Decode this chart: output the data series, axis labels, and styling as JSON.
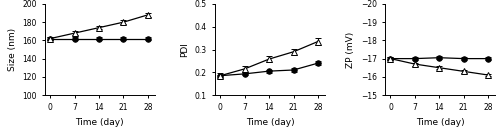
{
  "time": [
    0,
    7,
    14,
    21,
    28
  ],
  "size_4c": [
    162,
    162,
    162,
    162,
    162
  ],
  "size_25c": [
    162,
    168,
    174,
    180,
    188
  ],
  "size_err_4c": [
    2,
    2,
    2,
    2,
    2
  ],
  "size_err_25c": [
    2,
    2,
    2,
    2,
    2
  ],
  "size_ylim": [
    100,
    200
  ],
  "size_yticks": [
    100,
    120,
    140,
    160,
    180,
    200
  ],
  "size_ylabel": "Size (nm)",
  "pdi_4c": [
    0.185,
    0.193,
    0.205,
    0.21,
    0.24
  ],
  "pdi_25c": [
    0.185,
    0.215,
    0.258,
    0.29,
    0.335
  ],
  "pdi_err_4c": [
    0.005,
    0.007,
    0.007,
    0.007,
    0.008
  ],
  "pdi_err_25c": [
    0.01,
    0.012,
    0.012,
    0.014,
    0.015
  ],
  "pdi_ylim": [
    0.1,
    0.5
  ],
  "pdi_yticks": [
    0.1,
    0.2,
    0.3,
    0.4,
    0.5
  ],
  "pdi_ylabel": "PDI",
  "zp_4c": [
    -17.0,
    -17.0,
    -17.05,
    -17.0,
    -17.0
  ],
  "zp_25c": [
    -17.0,
    -16.7,
    -16.5,
    -16.3,
    -16.1
  ],
  "zp_err_4c": [
    0.08,
    0.08,
    0.08,
    0.08,
    0.08
  ],
  "zp_err_25c": [
    0.08,
    0.08,
    0.08,
    0.08,
    0.08
  ],
  "zp_ylim": [
    -20,
    -15
  ],
  "zp_yticks": [
    -20,
    -19,
    -18,
    -17,
    -16,
    -15
  ],
  "zp_ylabel": "ZP (mV)",
  "xlabel": "Time (day)",
  "xticks": [
    0,
    7,
    14,
    21,
    28
  ],
  "color": "black",
  "marker_4c": "o",
  "marker_25c": "^",
  "markersize": 4,
  "linewidth": 0.9,
  "capsize": 2,
  "elinewidth": 0.7
}
